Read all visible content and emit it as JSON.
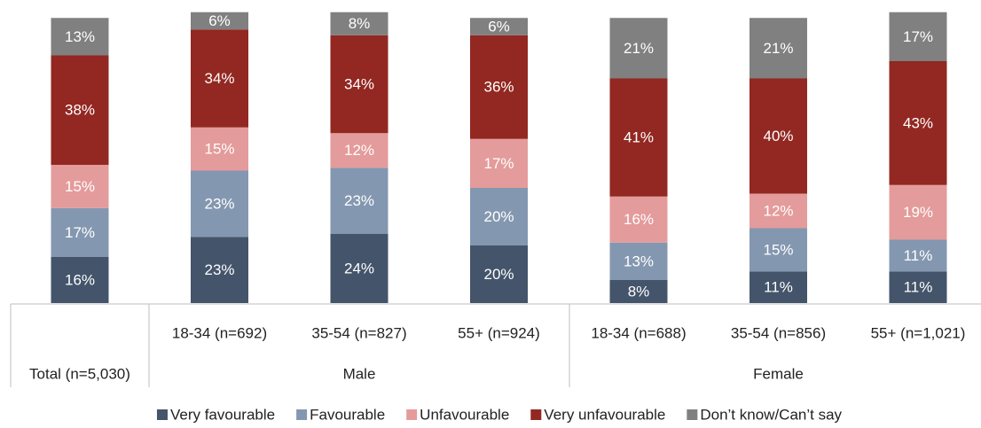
{
  "chart_data": {
    "type": "stacked_bar",
    "categories": [
      "Total (n=5,030)",
      "18-34 (n=692)",
      "35-54 (n=827)",
      "55+ (n=924)",
      "18-34 (n=688)",
      "35-54 (n=856)",
      "55+ (n=1,021)"
    ],
    "category_groups": [
      null,
      "Male",
      "Male",
      "Male",
      "Female",
      "Female",
      "Female"
    ],
    "ylim": [
      0,
      100
    ],
    "series": [
      {
        "name": "Very favourable",
        "color": "#44546a",
        "values": [
          16,
          23,
          24,
          20,
          8,
          11,
          11
        ],
        "value_labels": [
          "16%",
          "23%",
          "24%",
          "20%",
          "8%",
          "11%",
          "11%"
        ]
      },
      {
        "name": "Favourable",
        "color": "#8497b0",
        "values": [
          17,
          23,
          23,
          20,
          13,
          15,
          11
        ],
        "value_labels": [
          "17%",
          "23%",
          "23%",
          "20%",
          "13%",
          "15%",
          "11%"
        ]
      },
      {
        "name": "Unfavourable",
        "color": "#e49b9b",
        "values": [
          15,
          15,
          12,
          17,
          16,
          12,
          19
        ],
        "value_labels": [
          "15%",
          "15%",
          "12%",
          "17%",
          "16%",
          "12%",
          "19%"
        ]
      },
      {
        "name": "Very unfavourable",
        "color": "#922821",
        "values": [
          38,
          34,
          34,
          36,
          41,
          40,
          43
        ],
        "value_labels": [
          "38%",
          "34%",
          "34%",
          "36%",
          "41%",
          "40%",
          "43%"
        ]
      },
      {
        "name": "Don’t know/Can’t say",
        "color": "#808080",
        "values": [
          13,
          6,
          8,
          6,
          21,
          21,
          17
        ],
        "value_labels": [
          "13%",
          "6%",
          "8%",
          "6%",
          "21%",
          "21%",
          "17%"
        ]
      }
    ]
  }
}
